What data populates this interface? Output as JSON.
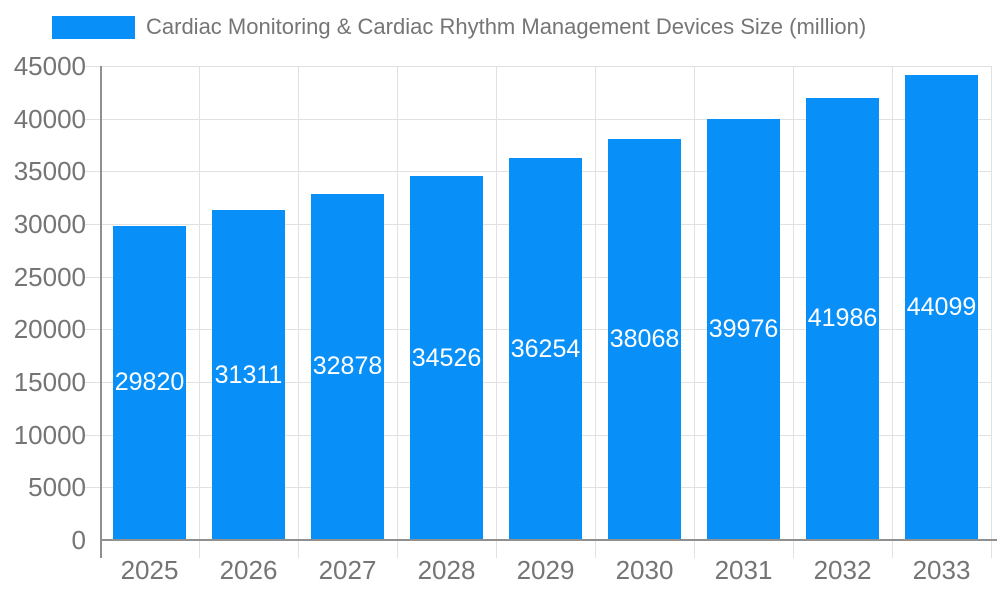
{
  "legend": {
    "label": "Cardiac Monitoring & Cardiac Rhythm Management Devices Size (million)"
  },
  "colors": {
    "bar": "#0890f8",
    "title_text": "#757575",
    "tick_text": "#757575",
    "value_label_text": "#ffffff",
    "axis_line": "#909090",
    "gridline": "#e1e1e1"
  },
  "chart_data": {
    "type": "bar",
    "title": "Cardiac Monitoring & Cardiac Rhythm Management Devices Size (million)",
    "categories": [
      "2025",
      "2026",
      "2027",
      "2028",
      "2029",
      "2030",
      "2031",
      "2032",
      "2033"
    ],
    "series": [
      {
        "name": "Cardiac Monitoring & Cardiac Rhythm Management Devices Size (million)",
        "values": [
          29820,
          31311,
          32878,
          34526,
          36254,
          38068,
          39976,
          41986,
          44099
        ]
      }
    ],
    "value_labels": [
      "29820",
      "31311",
      "32878",
      "34526",
      "36254",
      "38068",
      "39976",
      "41986",
      "44099"
    ],
    "xlabel": "",
    "ylabel": "",
    "ylim": [
      0,
      45000
    ],
    "ytick_step": 5000,
    "ytick_labels": [
      "0",
      "5000",
      "10000",
      "15000",
      "20000",
      "25000",
      "30000",
      "35000",
      "40000",
      "45000"
    ],
    "grid": true,
    "legend_position": "top-left",
    "value_label_position": "inside-center"
  }
}
